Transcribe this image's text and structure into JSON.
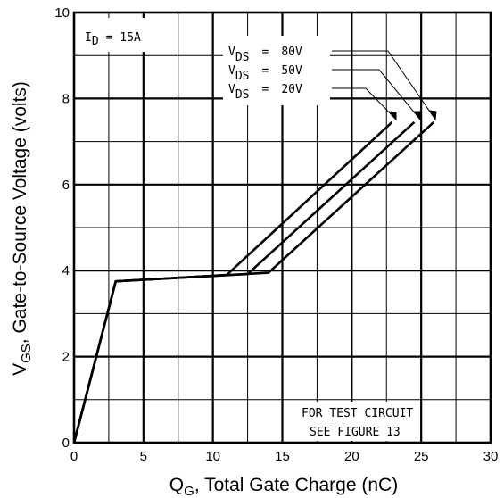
{
  "chart_data": {
    "type": "line",
    "x_axis": {
      "label_main": "Q",
      "label_sub": "G",
      "label_rest": ", Total Gate Charge (nC)",
      "range": [
        0,
        30
      ],
      "ticks": [
        0,
        5,
        10,
        15,
        20,
        25,
        30
      ],
      "tick_labels": [
        "0",
        "5",
        "10",
        "15",
        "20",
        "25",
        "30"
      ]
    },
    "y_axis": {
      "label_main": "V",
      "label_sub": "GS",
      "label_rest": ", Gate-to-Source Voltage (volts)",
      "range": [
        0,
        10
      ],
      "ticks": [
        0,
        2,
        4,
        6,
        8,
        10
      ],
      "tick_labels": [
        "0",
        "2",
        "4",
        "6",
        "8",
        "10"
      ]
    },
    "grid": true,
    "series": [
      {
        "name": "V DS = 80V",
        "points": [
          [
            0,
            0
          ],
          [
            3,
            3.75
          ],
          [
            14,
            3.95
          ],
          [
            25.9,
            7.45
          ]
        ]
      },
      {
        "name": "V DS = 50V",
        "points": [
          [
            0,
            0
          ],
          [
            3,
            3.75
          ],
          [
            12.5,
            3.92
          ],
          [
            24.5,
            7.45
          ]
        ]
      },
      {
        "name": "V DS = 20V",
        "points": [
          [
            0,
            0
          ],
          [
            3,
            3.75
          ],
          [
            11,
            3.9
          ],
          [
            22.9,
            7.45
          ]
        ]
      }
    ],
    "annotations": {
      "id_label": {
        "main": "I",
        "sub": "D",
        "rest": "= 15A"
      },
      "vds_labels": [
        {
          "main": "V",
          "sub": "DS",
          "eq": "=",
          "value": "80V"
        },
        {
          "main": "V",
          "sub": "DS",
          "eq": "=",
          "value": "50V"
        },
        {
          "main": "V",
          "sub": "DS",
          "eq": "=",
          "value": "20V"
        }
      ],
      "note_line1": "FOR TEST CIRCUIT",
      "note_line2": "SEE FIGURE 13"
    }
  }
}
